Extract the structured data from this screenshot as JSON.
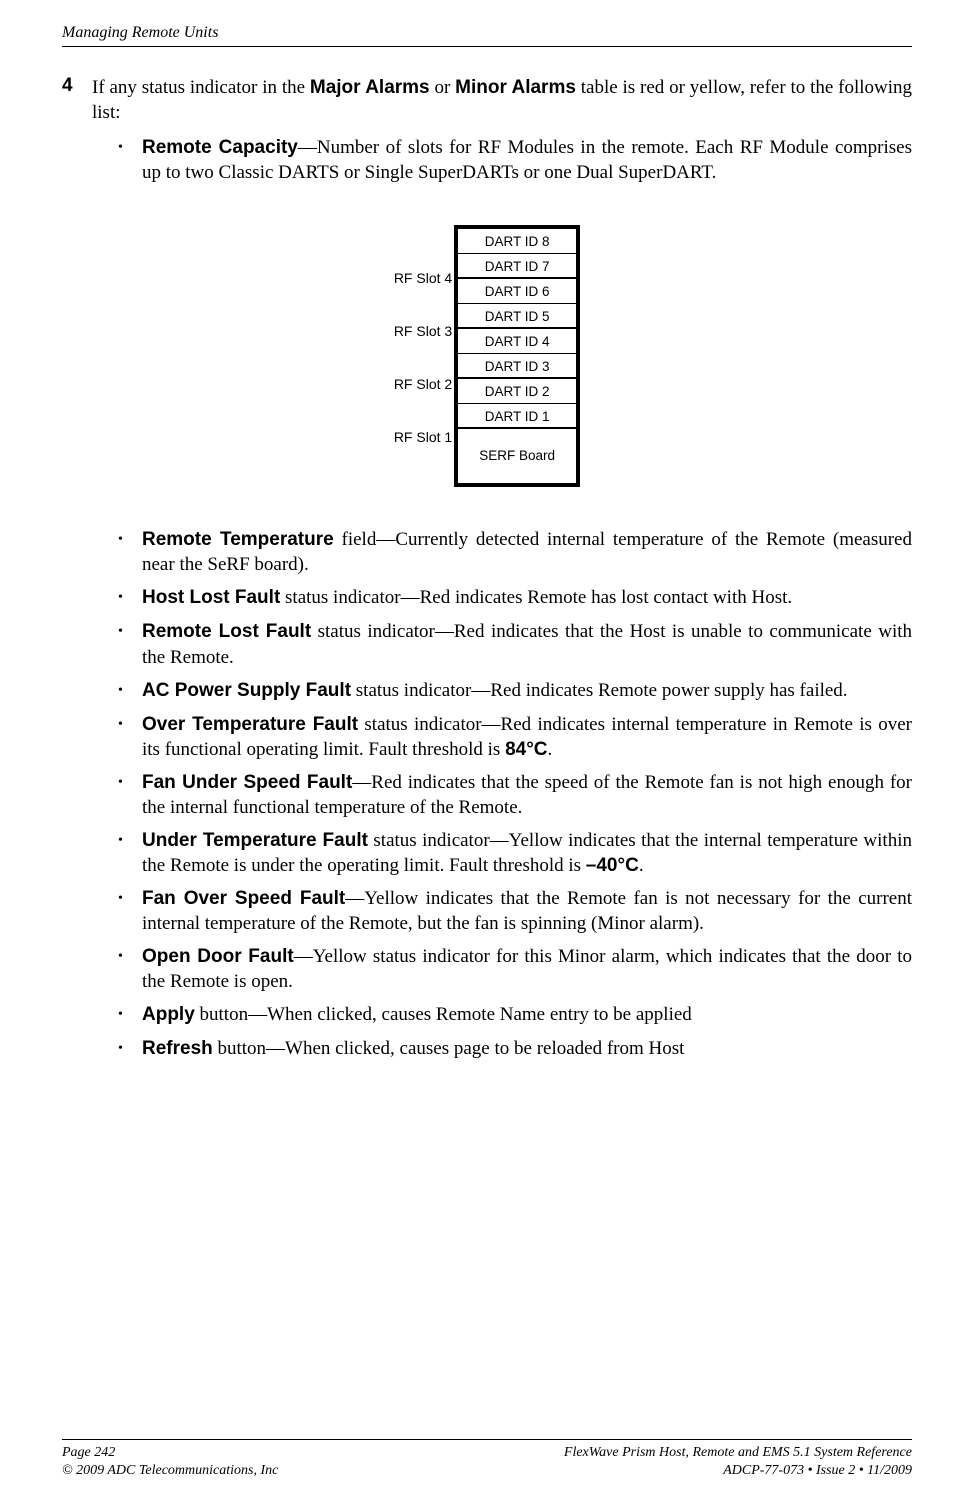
{
  "header": {
    "title": "Managing Remote Units"
  },
  "step": {
    "number": "4",
    "text_pre": "If any status indicator in the ",
    "bold1": "Major Alarms",
    "mid1": " or ",
    "bold2": "Minor Alarms",
    "text_post": " table is red or yellow, refer to the following list:"
  },
  "diagram": {
    "slot_labels": [
      "RF Slot 4",
      "RF Slot 3",
      "RF Slot 2",
      "RF Slot 1"
    ],
    "cells": [
      "DART ID 8",
      "DART ID 7",
      "DART ID 6",
      "DART ID 5",
      "DART ID 4",
      "DART ID 3",
      "DART ID 2",
      "DART ID 1"
    ],
    "bottom": "SERF Board"
  },
  "bullets": [
    {
      "bold": "Remote Capacity",
      "rest": "—Number of slots for RF Modules in the remote. Each RF Module comprises up to two Classic DARTS or Single SuperDARTs or one Dual SuperDART."
    },
    {
      "bold": "Remote Temperature",
      "rest": " field—Currently detected internal temperature of the Remote (measured near the SeRF board)."
    },
    {
      "bold": "Host Lost Fault",
      "rest": " status indicator—Red indicates Remote has lost contact with Host."
    },
    {
      "bold": "Remote Lost Fault",
      "rest": " status indicator—Red indicates that the Host is unable to communicate with the Remote."
    },
    {
      "bold": "AC Power Supply Fault",
      "rest": " status indicator—Red indicates Remote power supply has failed."
    },
    {
      "bold": "Over Temperature Fault",
      "rest_pre": " status indicator—Red indicates internal temperature in Remote is over its functional operating limit. Fault threshold is ",
      "bold2": "84°C",
      "rest_post": "."
    },
    {
      "bold": "Fan Under Speed Fault",
      "rest": "—Red indicates that the speed of the Remote fan is not high enough for the internal functional temperature of the Remote."
    },
    {
      "bold": "Under Temperature Fault",
      "rest_pre": " status indicator—Yellow indicates that the internal temperature within the Remote is under the operating limit. Fault threshold is ",
      "bold2": "–40°C",
      "rest_post": "."
    },
    {
      "bold": "Fan Over Speed Fault",
      "rest": "—Yellow indicates that the Remote fan is not necessary for the current internal temperature of the Remote, but the fan is spinning (Minor alarm)."
    },
    {
      "bold": "Open Door Fault",
      "rest": "—Yellow status indicator for this Minor alarm, which indicates that the door to the Remote is open."
    },
    {
      "bold": "Apply",
      "rest": " button—When clicked, causes Remote Name entry to be applied"
    },
    {
      "bold": "Refresh",
      "rest": " button—When clicked, causes page to be reloaded from Host"
    }
  ],
  "footer": {
    "left1": "Page 242",
    "right1": "FlexWave Prism Host, Remote and EMS 5.1 System Reference",
    "left2": "©  2009 ADC Telecommunications, Inc",
    "right2": "ADCP-77-073  •  Issue 2  •  11/2009"
  }
}
